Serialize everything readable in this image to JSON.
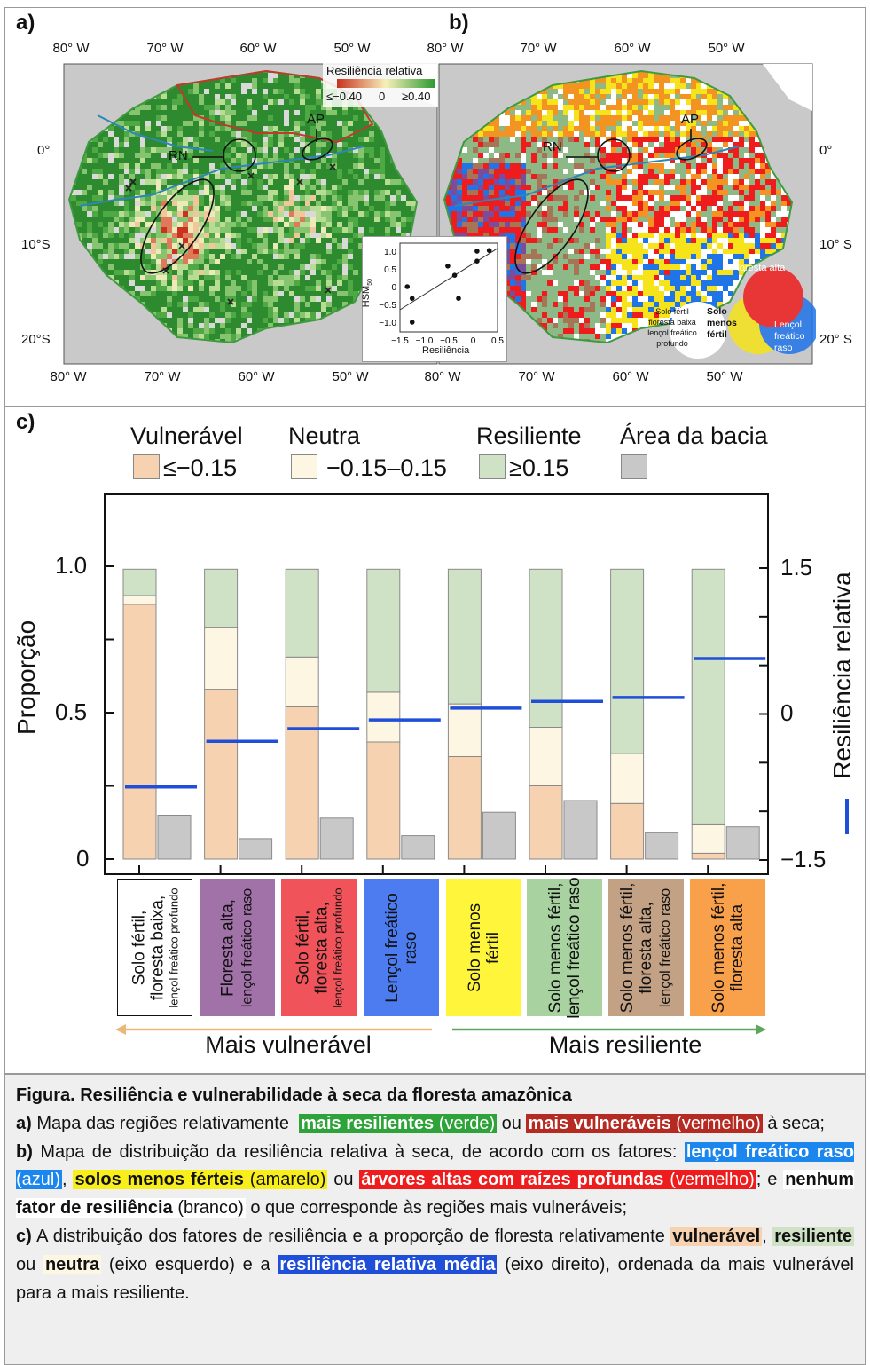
{
  "panels": {
    "a": "a)",
    "b": "b)",
    "c": "c)"
  },
  "map_axes": {
    "top_lon_a": [
      "80° W",
      "70° W",
      "60° W",
      "50° W"
    ],
    "top_lon_b": [
      "80° W",
      "70° W",
      "60° W",
      "50° W"
    ],
    "bottom_lon_a": [
      "80° W",
      "70° W",
      "60° W",
      "50° W"
    ],
    "bottom_lon_b": [
      "80° W",
      "70° W",
      "60° W",
      "50° W"
    ],
    "lat_left": [
      "0°",
      "10°S",
      "20°S"
    ],
    "lat_right": [
      "0°",
      "10° S",
      "20° S"
    ]
  },
  "map_a": {
    "legend_title": "Resiliência relativa",
    "legend_min": "≤−0.40",
    "legend_mid": "0",
    "legend_max": "≥0.40",
    "legend_colors": [
      "#c8321e",
      "#f7f0b8",
      "#2e9a33"
    ],
    "labels": {
      "rn": "RN",
      "ap": "AP"
    }
  },
  "map_b": {
    "labels": {
      "rn": "RN",
      "ap": "AP"
    },
    "venn": {
      "floresta_alta": "Floresta alta",
      "solo_menos_fertil": "Solo menos fértil",
      "lencol_raso": "Lençol freático raso",
      "none": [
        "Solo fértil",
        "floresta baixa",
        "lençol freático",
        "profundo"
      ]
    },
    "colors": {
      "red": "#ee1c1c",
      "yellow": "#f7e31a",
      "blue": "#1f74e8",
      "orange": "#f39322",
      "purple": "#7b4c9c",
      "green": "#8db987",
      "brown": "#a57556",
      "white": "#ffffff"
    }
  },
  "chart_data": [
    {
      "type": "bar",
      "stacked": true,
      "categories": [
        "Solo fértil, floresta baixa, lençol freático profundo",
        "Floresta alta, lençol freático raso",
        "Solo fértil, floresta alta, lençol freático profundo",
        "Lençol freático raso",
        "Solo menos fértil",
        "Solo menos fértil, lençol freático raso",
        "Solo menos fértil, floresta alta, lençol freático raso",
        "Solo menos fértil, floresta alta"
      ],
      "category_colors": [
        "#ffffff",
        "#a072a8",
        "#f0545a",
        "#4d7cf0",
        "#fff53a",
        "#a8d3a0",
        "#c2a184",
        "#f9a04a"
      ],
      "series": [
        {
          "name": "Vulnerável",
          "range_label": "≤−0.15",
          "color": "#f6d2b0",
          "values": [
            0.87,
            0.58,
            0.52,
            0.4,
            0.35,
            0.25,
            0.19,
            0.02
          ]
        },
        {
          "name": "Neutra",
          "range_label": "−0.15–0.15",
          "color": "#fdf6e3",
          "values": [
            0.03,
            0.21,
            0.17,
            0.17,
            0.18,
            0.2,
            0.17,
            0.1
          ]
        },
        {
          "name": "Resiliente",
          "range_label": "≥0.15",
          "color": "#cfe2c6",
          "values": [
            0.09,
            0.2,
            0.3,
            0.42,
            0.46,
            0.54,
            0.63,
            0.87
          ]
        },
        {
          "name": "Área da bacia",
          "range_label": "",
          "color": "#c8c8c8",
          "values": [
            0.15,
            0.07,
            0.14,
            0.08,
            0.16,
            0.2,
            0.09,
            0.11
          ]
        }
      ],
      "line_series": {
        "name": "Resiliência relativa",
        "axis": "right",
        "color": "#1f4fd8",
        "values": [
          -0.75,
          -0.28,
          -0.15,
          -0.06,
          0.06,
          0.13,
          0.17,
          0.57
        ]
      },
      "ylabel": "Proporção",
      "ylabel_right": "Resiliência relativa",
      "ylim": [
        0,
        1.0
      ],
      "yticks": [
        "0",
        "0.5",
        "1.0"
      ],
      "ylim_right": [
        -1.5,
        1.5
      ],
      "yticks_right": [
        "−1.5",
        "0",
        "1.5"
      ],
      "arrows": {
        "left": "Mais vulnerável",
        "right": "Mais resiliente",
        "left_color": "#e9b97a",
        "right_color": "#5ea65a"
      },
      "legend_placement": "top"
    },
    {
      "type": "scatter",
      "xlabel": "Resiliência",
      "ylabel": "HSM50",
      "xlim": [
        -1.5,
        0.5
      ],
      "ylim": [
        -1.1,
        1.1
      ],
      "xticks": [
        "−1.5",
        "−1.0",
        "−0.5",
        "0",
        "0.5"
      ],
      "yticks": [
        "1.0",
        "0.5",
        "0",
        "−0.5",
        "−1.0"
      ],
      "points": [
        [
          -1.35,
          0.0
        ],
        [
          -1.25,
          -0.33
        ],
        [
          -1.25,
          -1.0
        ],
        [
          -0.52,
          0.58
        ],
        [
          -0.38,
          0.32
        ],
        [
          -0.3,
          -0.33
        ],
        [
          0.08,
          1.0
        ],
        [
          0.08,
          0.72
        ],
        [
          0.33,
          1.02
        ]
      ],
      "fit_line": [
        [
          -1.5,
          -0.65
        ],
        [
          0.5,
          1.08
        ]
      ]
    }
  ],
  "caption": {
    "title": "Figura. Resiliência e vulnerabilidade à seca da floresta amazônica",
    "a": {
      "tag": "a)",
      "t1": "Mapa das regiões relativamente",
      "h1b": "mais resilientes",
      "h1n": "(verde)",
      "t2": "ou",
      "h2b": "mais vulneráveis",
      "h2n": "(vermelho)",
      "t3": "à seca;"
    },
    "b": {
      "tag": "b)",
      "t1": "Mapa de distribuição da resiliência relativa à seca, de acordo com os fatores:",
      "h1b": "lençol freático raso",
      "h1n": "(azul)",
      "t2": ",",
      "h2b": "solos menos férteis",
      "h2n": "(amarelo)",
      "t3": "ou",
      "h3b": "árvores altas com raízes profundas",
      "h3n": "(vermelho)",
      "t4": "; e",
      "h4b": "nenhum fator de resiliência",
      "h4n": "(branco)",
      "t5": "o que corresponde às regiões mais vulneráveis;"
    },
    "c": {
      "tag": "c)",
      "t1": "A distribuição dos fatores de resiliência e a proporção de floresta relativamente",
      "h1": "vulnerável",
      "t2": ",",
      "h2": "resiliente",
      "t3": "ou",
      "h3": "neutra",
      "t4": "(eixo esquerdo) e a",
      "h4": "resiliência relativa média",
      "t5": "(eixo direito), ordenada da mais vulnerável para a mais resiliente."
    }
  }
}
